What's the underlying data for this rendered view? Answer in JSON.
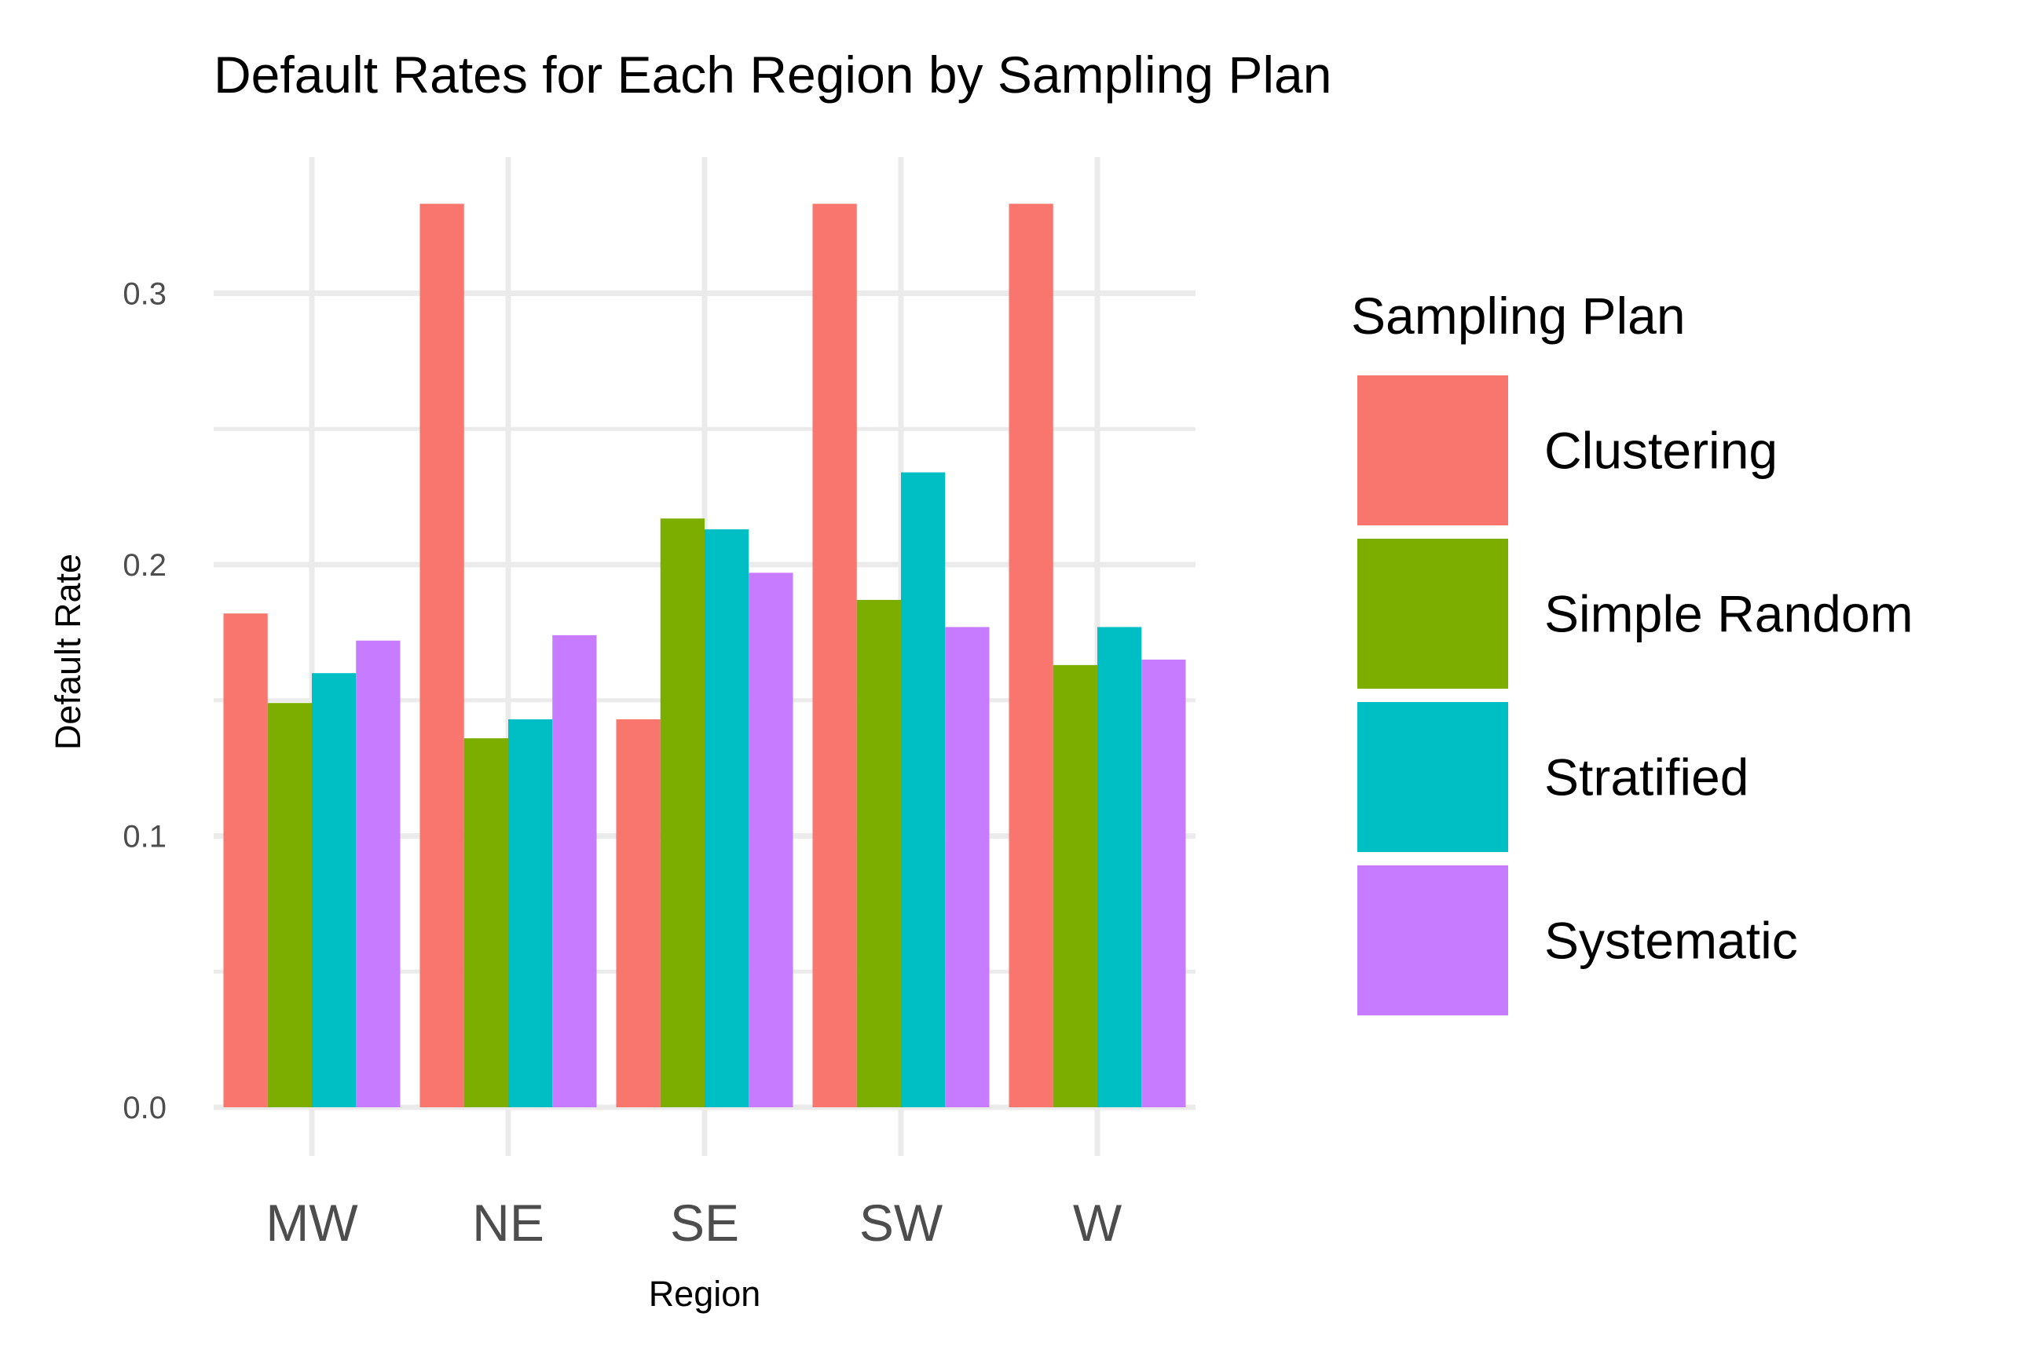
{
  "chart_data": {
    "type": "bar",
    "title": "Default Rates for Each Region by Sampling Plan",
    "xlabel": "Region",
    "ylabel": "Default Rate",
    "categories": [
      "MW",
      "NE",
      "SE",
      "SW",
      "W"
    ],
    "series": [
      {
        "name": "Clustering",
        "color": "#F8766D",
        "values": [
          0.182,
          0.333,
          0.143,
          0.333,
          0.333
        ]
      },
      {
        "name": "Simple Random",
        "color": "#7CAE00",
        "values": [
          0.149,
          0.136,
          0.217,
          0.187,
          0.163
        ]
      },
      {
        "name": "Stratified",
        "color": "#00BFC4",
        "values": [
          0.16,
          0.143,
          0.213,
          0.234,
          0.177
        ]
      },
      {
        "name": "Systematic",
        "color": "#C77CFF",
        "values": [
          0.172,
          0.174,
          0.197,
          0.177,
          0.165
        ]
      }
    ],
    "ylim": [
      0,
      0.33
    ],
    "yticks": [
      "0.0",
      "0.1",
      "0.2",
      "0.3"
    ],
    "grid": true,
    "legend": {
      "title": "Sampling Plan",
      "placement": "right"
    }
  }
}
